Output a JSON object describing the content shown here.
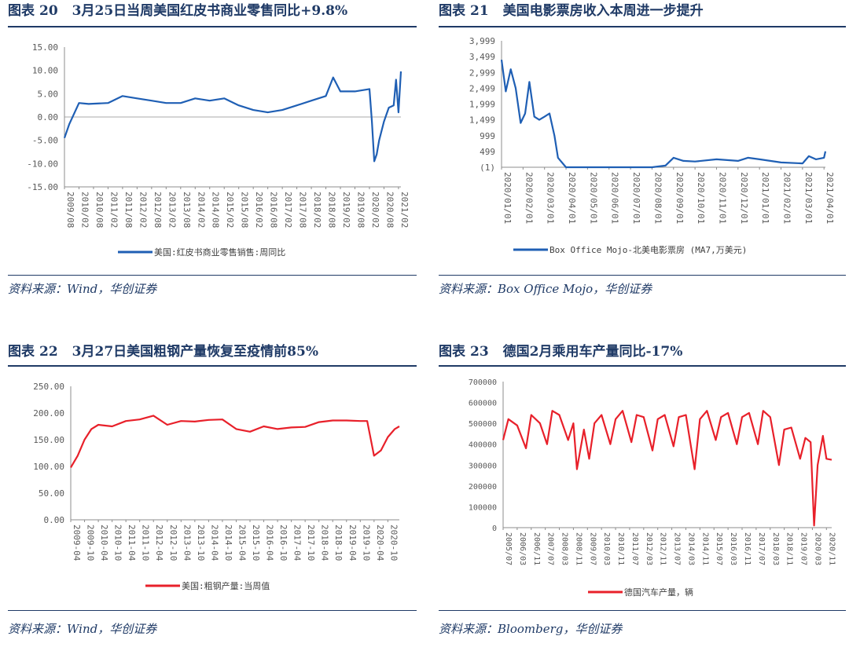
{
  "panels": [
    {
      "title_label": "图表",
      "title_num": "20",
      "title_text": "3月25日当周美国红皮书商业零售同比+9.8%",
      "source": "资料来源：Wind，华创证券"
    },
    {
      "title_label": "图表",
      "title_num": "21",
      "title_text": "美国电影票房收入本周进一步提升",
      "source": "资料来源：Box Office Mojo，华创证券"
    },
    {
      "title_label": "图表",
      "title_num": "22",
      "title_text": "3月27日美国粗钢产量恢复至疫情前85%",
      "source": "资料来源：Wind，华创证券"
    },
    {
      "title_label": "图表",
      "title_num": "23",
      "title_text": "德国2月乘用车产量同比-17%",
      "source": "资料来源：Bloomberg，华创证券"
    }
  ],
  "chart_data": [
    {
      "type": "line",
      "color": "#1f5fb4",
      "ylim": [
        -15,
        15
      ],
      "yticks": [
        "15.00",
        "10.00",
        "5.00",
        "0.00",
        "-5.00",
        "-10.00",
        "-15.00"
      ],
      "xticks": [
        "2009/08",
        "2010/02",
        "2010/08",
        "2011/02",
        "2011/08",
        "2012/02",
        "2012/08",
        "2013/02",
        "2013/08",
        "2014/02",
        "2014/08",
        "2015/02",
        "2015/08",
        "2016/02",
        "2016/08",
        "2017/02",
        "2017/08",
        "2018/02",
        "2018/08",
        "2019/02",
        "2019/08",
        "2020/02",
        "2020/08",
        "2021/02"
      ],
      "series": [
        {
          "name": "美国:红皮书商业零售销售:周同比",
          "x": [
            "2009/08",
            "2009/10",
            "2010/02",
            "2010/06",
            "2011/02",
            "2011/08",
            "2012/02",
            "2012/08",
            "2013/02",
            "2013/08",
            "2014/02",
            "2014/08",
            "2015/02",
            "2015/08",
            "2016/02",
            "2016/08",
            "2017/02",
            "2017/08",
            "2018/02",
            "2018/08",
            "2018/11",
            "2019/02",
            "2019/08",
            "2020/02",
            "2020/03",
            "2020/04",
            "2020/05",
            "2020/06",
            "2020/08",
            "2020/10",
            "2020/12",
            "2021/01",
            "2021/02",
            "2021/03"
          ],
          "values": [
            -4.5,
            -1.5,
            3.0,
            2.8,
            3.0,
            4.5,
            4.0,
            3.5,
            3.0,
            3.0,
            4.0,
            3.5,
            4.0,
            2.5,
            1.5,
            1.0,
            1.5,
            2.5,
            3.5,
            4.5,
            8.5,
            5.5,
            5.5,
            6.0,
            -1.0,
            -9.5,
            -8.0,
            -5.0,
            -1.0,
            2.0,
            2.5,
            8.0,
            1.0,
            9.8
          ]
        }
      ]
    },
    {
      "type": "line",
      "color": "#1f5fb4",
      "ylim": [
        -1,
        3999
      ],
      "yticks": [
        "3,999",
        "3,499",
        "2,999",
        "2,499",
        "1,999",
        "1,499",
        "999",
        "499",
        "(1)"
      ],
      "xticks": [
        "2020/01/01",
        "2020/02/01",
        "2020/03/01",
        "2020/04/01",
        "2020/05/01",
        "2020/06/01",
        "2020/07/01",
        "2020/08/01",
        "2020/09/01",
        "2020/10/01",
        "2020/11/01",
        "2020/12/01",
        "2021/01/01",
        "2021/02/01",
        "2021/03/01",
        "2021/04/01"
      ],
      "series": [
        {
          "name": "Box Office Mojo-北美电影票房 (MA7,万美元)",
          "x": [
            "2020/01/01",
            "2020/01/07",
            "2020/01/14",
            "2020/01/21",
            "2020/01/28",
            "2020/02/04",
            "2020/02/10",
            "2020/02/17",
            "2020/02/24",
            "2020/03/01",
            "2020/03/08",
            "2020/03/15",
            "2020/03/20",
            "2020/04/01",
            "2020/06/01",
            "2020/08/01",
            "2020/08/20",
            "2020/09/01",
            "2020/09/15",
            "2020/10/01",
            "2020/11/01",
            "2020/12/01",
            "2020/12/15",
            "2021/01/01",
            "2021/02/01",
            "2021/03/01",
            "2021/03/10",
            "2021/03/20",
            "2021/04/01",
            "2021/04/03"
          ],
          "values": [
            3400,
            2400,
            3100,
            2500,
            1400,
            1700,
            2700,
            1600,
            1500,
            1600,
            1700,
            1000,
            300,
            0,
            0,
            0,
            50,
            300,
            200,
            180,
            250,
            200,
            300,
            250,
            150,
            120,
            350,
            250,
            300,
            500
          ]
        }
      ]
    },
    {
      "type": "line",
      "color": "#e8202a",
      "ylim": [
        0,
        250
      ],
      "yticks": [
        "250.00",
        "200.00",
        "150.00",
        "100.00",
        "50.00",
        "0.00"
      ],
      "xticks": [
        "2009-04",
        "2009-10",
        "2010-04",
        "2010-10",
        "2011-04",
        "2011-10",
        "2012-04",
        "2012-10",
        "2013-04",
        "2013-10",
        "2014-04",
        "2014-10",
        "2015-04",
        "2015-10",
        "2016-04",
        "2016-10",
        "2017-04",
        "2017-10",
        "2018-04",
        "2018-10",
        "2019-04",
        "2019-10",
        "2020-04",
        "2020-10"
      ],
      "series": [
        {
          "name": "美国:粗钢产量:当周值",
          "x": [
            "2009-04",
            "2009-07",
            "2009-10",
            "2010-01",
            "2010-04",
            "2010-10",
            "2011-04",
            "2011-10",
            "2012-04",
            "2012-10",
            "2013-04",
            "2013-10",
            "2014-04",
            "2014-10",
            "2015-04",
            "2015-10",
            "2016-04",
            "2016-10",
            "2017-04",
            "2017-10",
            "2018-04",
            "2018-10",
            "2019-04",
            "2019-10",
            "2020-01",
            "2020-04",
            "2020-07",
            "2020-10",
            "2021-01",
            "2021-03"
          ],
          "values": [
            98,
            120,
            150,
            170,
            178,
            175,
            185,
            188,
            195,
            178,
            185,
            184,
            187,
            188,
            170,
            165,
            175,
            170,
            173,
            174,
            183,
            186,
            186,
            185,
            185,
            120,
            130,
            155,
            170,
            175
          ]
        }
      ]
    },
    {
      "type": "line",
      "color": "#e8202a",
      "ylim": [
        0,
        700000
      ],
      "yticks": [
        "700000",
        "600000",
        "500000",
        "400000",
        "300000",
        "200000",
        "100000",
        "0"
      ],
      "xticks": [
        "2005/07",
        "2006/03",
        "2006/11",
        "2007/07",
        "2008/03",
        "2008/11",
        "2009/07",
        "2010/03",
        "2010/11",
        "2011/07",
        "2012/03",
        "2012/11",
        "2013/07",
        "2014/03",
        "2014/11",
        "2015/07",
        "2016/03",
        "2016/11",
        "2017/07",
        "2018/03",
        "2018/11",
        "2019/07",
        "2020/03",
        "2020/11"
      ],
      "series": [
        {
          "name": "德国汽车产量，辆",
          "x": [
            "2005/07",
            "2005/10",
            "2006/03",
            "2006/08",
            "2006/11",
            "2007/04",
            "2007/08",
            "2007/11",
            "2008/03",
            "2008/08",
            "2008/11",
            "2009/01",
            "2009/05",
            "2009/08",
            "2009/11",
            "2010/03",
            "2010/08",
            "2010/11",
            "2011/03",
            "2011/08",
            "2011/11",
            "2012/03",
            "2012/08",
            "2012/11",
            "2013/03",
            "2013/08",
            "2013/11",
            "2014/03",
            "2014/08",
            "2014/11",
            "2015/03",
            "2015/08",
            "2015/11",
            "2016/03",
            "2016/08",
            "2016/11",
            "2017/03",
            "2017/08",
            "2017/11",
            "2018/03",
            "2018/08",
            "2018/11",
            "2019/03",
            "2019/08",
            "2019/11",
            "2020/02",
            "2020/04",
            "2020/06",
            "2020/09",
            "2020/11",
            "2021/02"
          ],
          "values": [
            420000,
            520000,
            490000,
            380000,
            540000,
            500000,
            400000,
            560000,
            540000,
            420000,
            500000,
            280000,
            470000,
            330000,
            500000,
            540000,
            400000,
            520000,
            560000,
            410000,
            540000,
            530000,
            370000,
            520000,
            540000,
            390000,
            530000,
            540000,
            280000,
            520000,
            560000,
            420000,
            530000,
            550000,
            400000,
            530000,
            550000,
            400000,
            560000,
            530000,
            300000,
            470000,
            480000,
            330000,
            430000,
            410000,
            10000,
            300000,
            440000,
            330000,
            325000
          ]
        }
      ]
    }
  ]
}
